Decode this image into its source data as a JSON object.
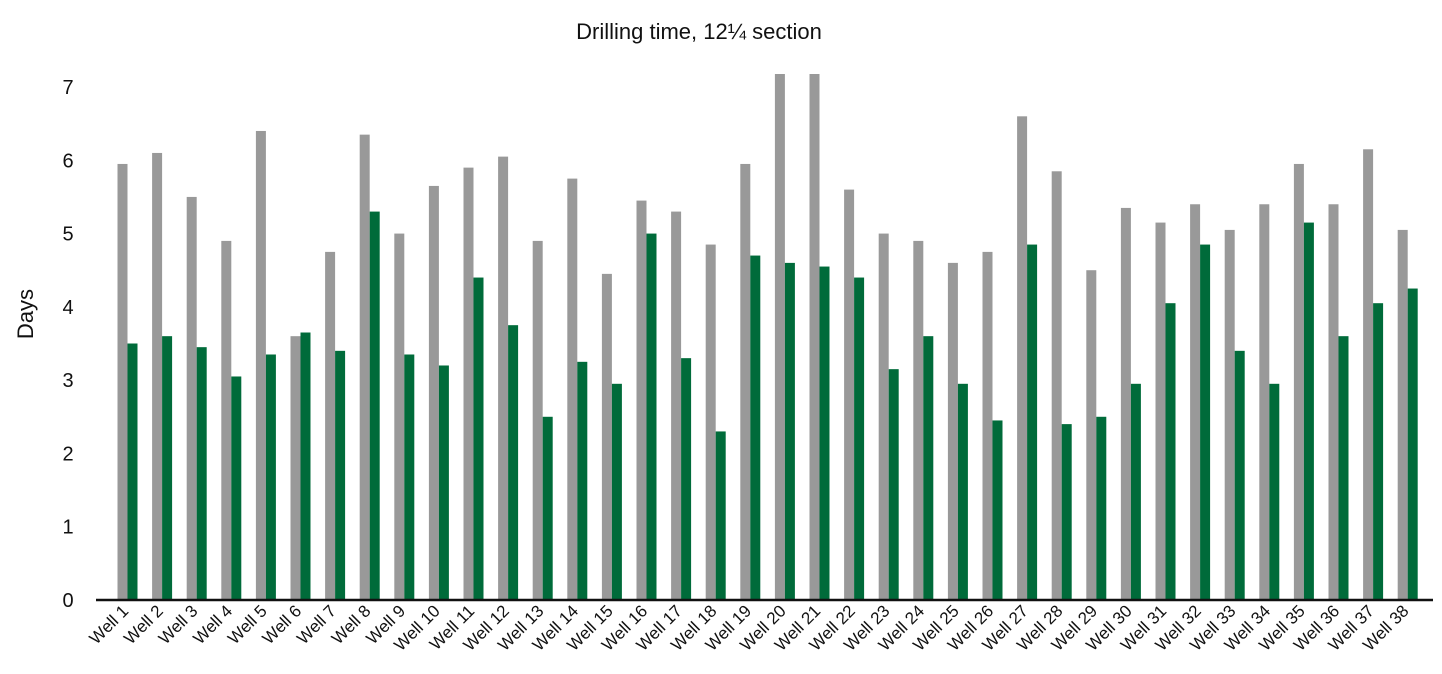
{
  "chart_data": {
    "type": "bar",
    "title": "Drilling time, 12¼ section",
    "xlabel": "",
    "ylabel": "Days",
    "ylim": [
      0,
      7
    ],
    "yticks": [
      "0",
      "1",
      "2",
      "3",
      "4",
      "5",
      "6",
      "7"
    ],
    "grid": false,
    "legend": "none",
    "categories": [
      "Well 1",
      "Well 2",
      "Well 3",
      "Well 4",
      "Well 5",
      "Well 6",
      "Well 7",
      "Well 8",
      "Well 9",
      "Well 10",
      "Well 11",
      "Well 12",
      "Well 13",
      "Well 14",
      "Well 15",
      "Well 16",
      "Well 17",
      "Well 18",
      "Well 19",
      "Well 20",
      "Well 21",
      "Well 22",
      "Well 23",
      "Well 24",
      "Well 25",
      "Well 26",
      "Well 27",
      "Well 28",
      "Well 29",
      "Well 30",
      "Well 31",
      "Well 32",
      "Well 33",
      "Well 34",
      "Well 35",
      "Well 36",
      "Well 37",
      "Well 38"
    ],
    "series": [
      {
        "color": "#999999",
        "values": [
          5.95,
          6.1,
          5.5,
          4.9,
          6.4,
          3.6,
          4.75,
          6.35,
          5.0,
          5.65,
          5.9,
          6.05,
          4.9,
          5.75,
          4.45,
          5.45,
          5.3,
          4.85,
          5.95,
          7.2,
          7.2,
          5.6,
          5.0,
          4.9,
          4.6,
          4.75,
          6.6,
          5.85,
          4.5,
          5.35,
          5.15,
          5.4,
          5.05,
          5.4,
          5.95,
          5.4,
          6.15,
          5.05
        ]
      },
      {
        "color": "#006b3a",
        "values": [
          3.5,
          3.6,
          3.45,
          3.05,
          3.35,
          3.65,
          3.4,
          5.3,
          3.35,
          3.2,
          4.4,
          3.75,
          2.5,
          3.25,
          2.95,
          5.0,
          3.3,
          2.3,
          4.7,
          4.6,
          4.55,
          4.4,
          3.15,
          3.6,
          2.95,
          2.45,
          4.85,
          2.4,
          2.5,
          2.95,
          4.05,
          4.85,
          3.4,
          2.95,
          5.15,
          3.6,
          4.05,
          4.25
        ]
      }
    ]
  }
}
